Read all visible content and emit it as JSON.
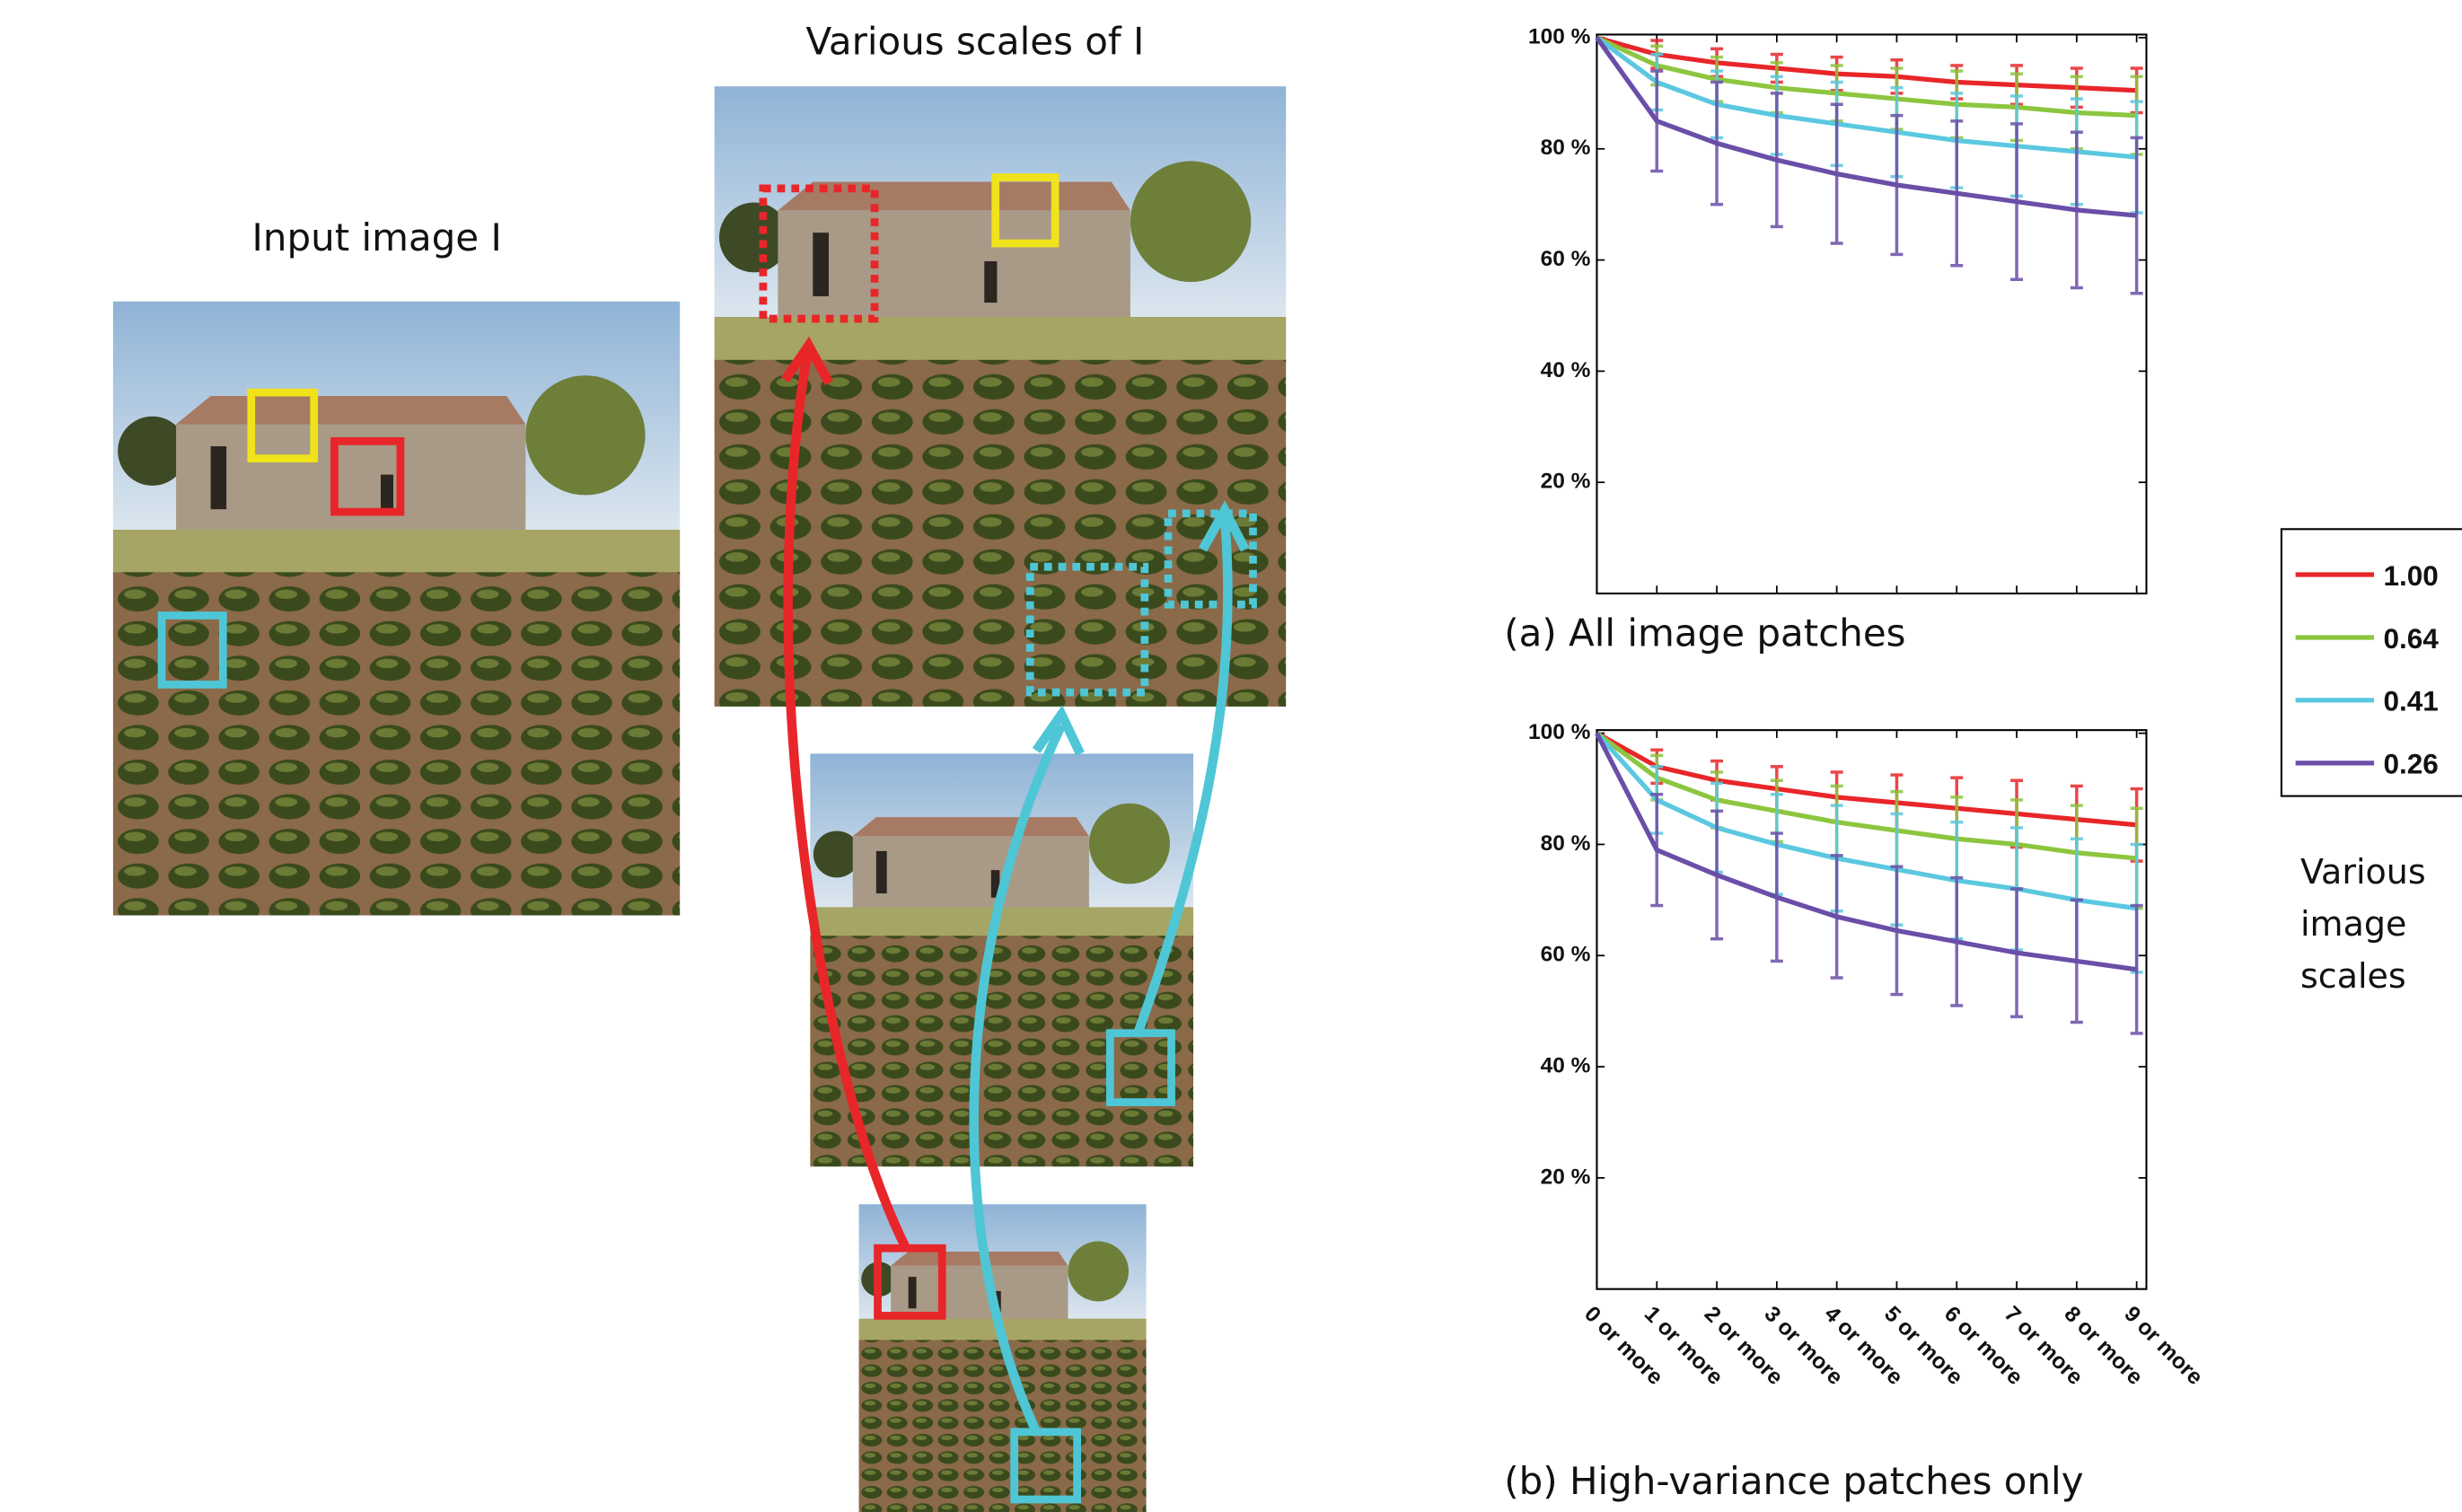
{
  "figure": {
    "input_label": "Input image I",
    "scales_label": "Various scales of I",
    "legend_title": "Various image scales"
  },
  "chart_data": [
    {
      "type": "line",
      "title": "(a) All image patches",
      "ylim": [
        0,
        100
      ],
      "yticks": [
        {
          "value": 20,
          "label": "20 %"
        },
        {
          "value": 40,
          "label": "40 %"
        },
        {
          "value": 60,
          "label": "60 %"
        },
        {
          "value": 80,
          "label": "80 %"
        },
        {
          "value": 100,
          "label": "100 %"
        }
      ],
      "series": [
        {
          "name": "1.00",
          "color": "#e8262a",
          "values": [
            100,
            97,
            95.5,
            94.5,
            93.5,
            93,
            92,
            91.5,
            91,
            90.5
          ],
          "errors": [
            null,
            2.5,
            2.5,
            2.5,
            3,
            3,
            3,
            3.5,
            3.5,
            4
          ]
        },
        {
          "name": "0.64",
          "color": "#8cc63f",
          "values": [
            100,
            95,
            92.5,
            91,
            90,
            89,
            88,
            87.5,
            86.5,
            86
          ],
          "errors": [
            null,
            3.5,
            4,
            4.5,
            5,
            5.5,
            6,
            6,
            6.5,
            7
          ]
        },
        {
          "name": "0.41",
          "color": "#5bc8e0",
          "values": [
            100,
            92,
            88,
            86,
            84.5,
            83,
            81.5,
            80.5,
            79.5,
            78.5
          ],
          "errors": [
            null,
            5,
            6,
            7,
            7.5,
            8,
            8.5,
            9,
            9.5,
            10
          ]
        },
        {
          "name": "0.26",
          "color": "#6a4ea8",
          "values": [
            100,
            85,
            81,
            78,
            75.5,
            73.5,
            72,
            70.5,
            69,
            68
          ],
          "errors": [
            null,
            9,
            11,
            12,
            12.5,
            12.5,
            13,
            14,
            14,
            14
          ]
        }
      ]
    },
    {
      "type": "line",
      "title": "(b) High-variance patches only",
      "categories": [
        "0 or more",
        "1 or more",
        "2 or more",
        "3 or more",
        "4 or more",
        "5 or more",
        "6 or more",
        "7 or more",
        "8 or more",
        "9 or more"
      ],
      "ylim": [
        0,
        100
      ],
      "yticks": [
        {
          "value": 20,
          "label": "20 %"
        },
        {
          "value": 40,
          "label": "40 %"
        },
        {
          "value": 60,
          "label": "60 %"
        },
        {
          "value": 80,
          "label": "80 %"
        },
        {
          "value": 100,
          "label": "100 %"
        }
      ],
      "series": [
        {
          "color": "#e8262a",
          "values": [
            100,
            94,
            91.5,
            90,
            88.5,
            87.5,
            86.5,
            85.5,
            84.5,
            83.5
          ],
          "errors": [
            null,
            3,
            3.5,
            4,
            4.5,
            5,
            5.5,
            6,
            6,
            6.5
          ]
        },
        {
          "color": "#8cc63f",
          "values": [
            100,
            92,
            88,
            86,
            84,
            82.5,
            81,
            80,
            78.5,
            77.5
          ],
          "errors": [
            null,
            4,
            5,
            5.5,
            6.5,
            7,
            7.5,
            8,
            8.5,
            9
          ]
        },
        {
          "color": "#5bc8e0",
          "values": [
            100,
            88,
            83,
            80,
            77.5,
            75.5,
            73.5,
            72,
            70,
            68.5
          ],
          "errors": [
            null,
            6,
            8,
            9,
            9.5,
            10,
            10.5,
            11,
            11,
            11.5
          ]
        },
        {
          "color": "#6a4ea8",
          "values": [
            100,
            79,
            74.5,
            70.5,
            67,
            64.5,
            62.5,
            60.5,
            59,
            57.5
          ],
          "errors": [
            null,
            10,
            11.5,
            11.5,
            11,
            11.5,
            11.5,
            11.5,
            11,
            11.5
          ]
        }
      ]
    }
  ]
}
